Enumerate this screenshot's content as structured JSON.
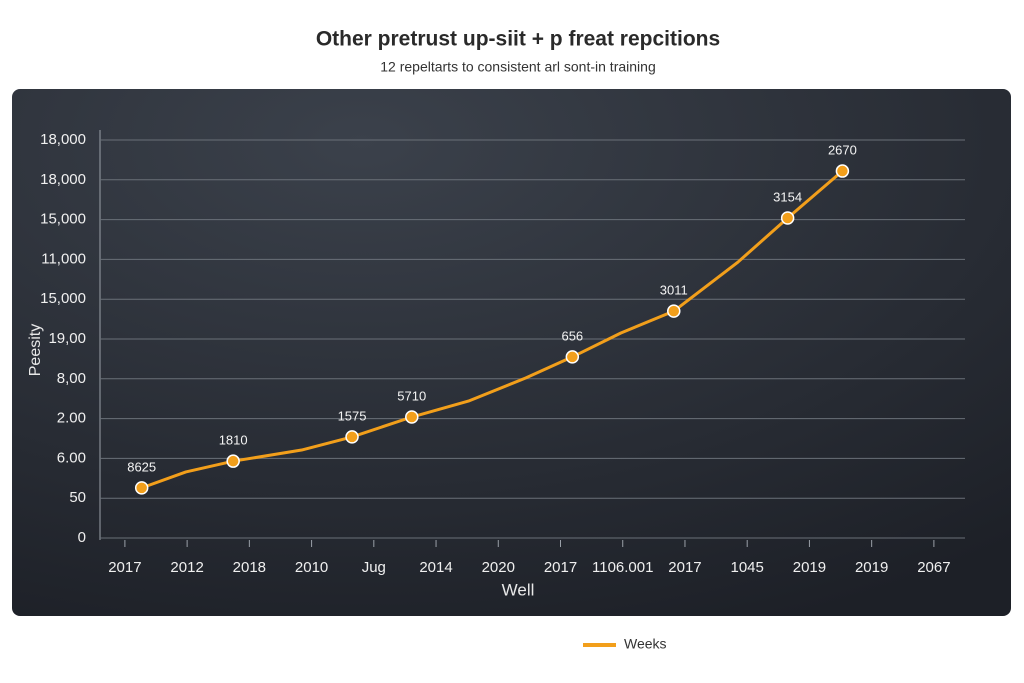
{
  "chart_data": {
    "type": "line",
    "title": "Other pretrust up-siit + p freat repcitions",
    "subtitle": "12 repeltarts to consistent arl sont-in training",
    "x_label": "Well",
    "y_label": "Peesity",
    "xticks": [
      {
        "value": 0,
        "label": "2017"
      },
      {
        "value": 1,
        "label": "2012"
      },
      {
        "value": 2,
        "label": "2018"
      },
      {
        "value": 3,
        "label": "2010"
      },
      {
        "value": 4,
        "label": "Jug"
      },
      {
        "value": 5,
        "label": "2014"
      },
      {
        "value": 6,
        "label": "2020"
      },
      {
        "value": 7,
        "label": "2017"
      },
      {
        "value": 8,
        "label": "1106.001"
      },
      {
        "value": 9,
        "label": "2017"
      },
      {
        "value": 10,
        "label": "1045"
      },
      {
        "value": 11,
        "label": "2019"
      },
      {
        "value": 12,
        "label": "2019"
      },
      {
        "value": 13,
        "label": "2067"
      }
    ],
    "xlim": [
      -0.4,
      13.5
    ],
    "yticks": [
      {
        "value": 0,
        "label": "0"
      },
      {
        "value": 1,
        "label": "50"
      },
      {
        "value": 2,
        "label": "6.00"
      },
      {
        "value": 3,
        "label": "2.00"
      },
      {
        "value": 4,
        "label": "8,00"
      },
      {
        "value": 5,
        "label": "19,00"
      },
      {
        "value": 6,
        "label": "15,000"
      },
      {
        "value": 7,
        "label": "11,000"
      },
      {
        "value": 8,
        "label": "15,000"
      },
      {
        "value": 9,
        "label": "18,000"
      },
      {
        "value": 10,
        "label": "18,000"
      }
    ],
    "ylim": [
      0,
      10
    ],
    "grid": true,
    "legend": "bottom",
    "series": [
      {
        "name": "Weeks",
        "color": "#f29f1b",
        "x": [
          0.27,
          0.98,
          1.74,
          2.84,
          3.65,
          4.61,
          5.52,
          6.44,
          7.19,
          7.97,
          8.82,
          9.85,
          10.65,
          11.53
        ],
        "values": [
          1.26,
          1.66,
          1.93,
          2.21,
          2.54,
          3.04,
          3.44,
          4.02,
          4.55,
          5.15,
          5.7,
          6.93,
          8.04,
          9.22
        ]
      }
    ],
    "annotations": [
      {
        "text": "8625",
        "point": 0
      },
      {
        "text": "1810",
        "point": 2
      },
      {
        "text": "1575",
        "point": 4
      },
      {
        "text": "5710",
        "point": 5
      },
      {
        "text": "656",
        "point": 8
      },
      {
        "text": "3011",
        "point": 10
      },
      {
        "text": "3154",
        "point": 12
      },
      {
        "text": "2670",
        "point": 13
      }
    ]
  }
}
